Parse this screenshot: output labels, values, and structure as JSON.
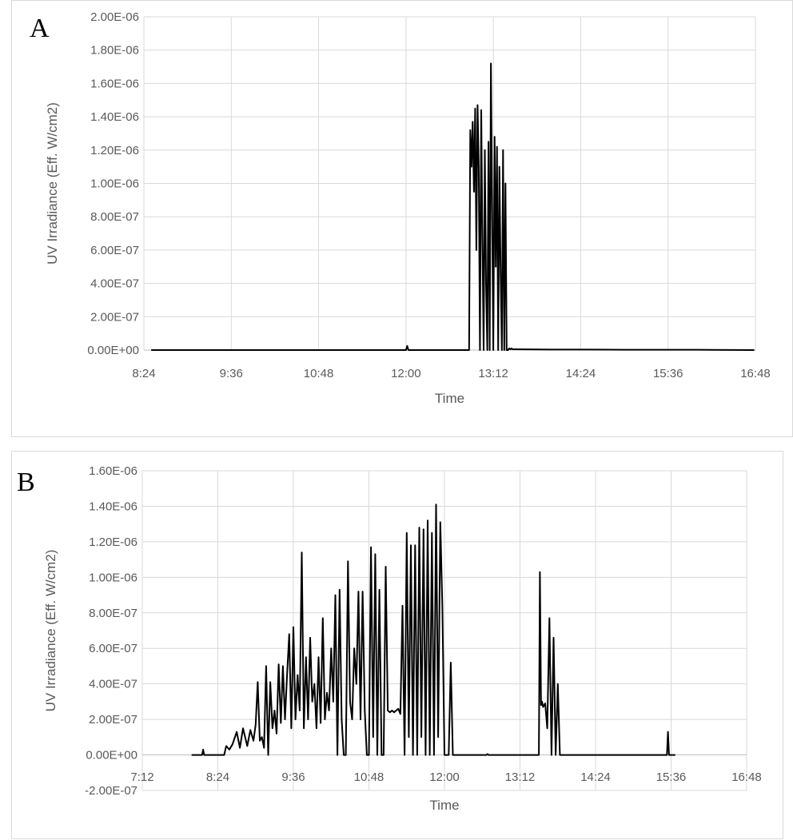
{
  "chart_data": [
    {
      "type": "line",
      "panel_label": "A",
      "xlabel": "Time",
      "ylabel": "UV Irradiance (Eff. W/cm2)",
      "x_unit": "time of day (hh:mm)",
      "xlim": [
        "8:24",
        "16:48"
      ],
      "ylim": [
        0,
        2e-06
      ],
      "x_tick_labels": [
        "8:24",
        "9:36",
        "10:48",
        "12:00",
        "13:12",
        "14:24",
        "15:36",
        "16:48"
      ],
      "y_tick_labels": [
        "0.00E+00",
        "2.00E-07",
        "4.00E-07",
        "6.00E-07",
        "8.00E-07",
        "1.00E-06",
        "1.20E-06",
        "1.40E-06",
        "1.60E-06",
        "1.80E-06",
        "2.00E-06"
      ],
      "grid": true,
      "legend": "none",
      "series": [
        {
          "color": "#000000",
          "x": [
            "8:30",
            "10:40",
            "11:30",
            "12:00",
            "12:01",
            "12:02",
            "12:30",
            "12:52",
            "12:53",
            "12:54",
            "12:55",
            "12:56",
            "12:57",
            "12:58",
            "12:59",
            "13:00",
            "13:01",
            "13:02",
            "13:03",
            "13:04",
            "13:05",
            "13:06",
            "13:07",
            "13:08",
            "13:09",
            "13:10",
            "13:11",
            "13:12",
            "13:13",
            "13:14",
            "13:15",
            "13:16",
            "13:17",
            "13:18",
            "13:19",
            "13:20",
            "13:21",
            "13:22",
            "13:23",
            "13:24",
            "13:25",
            "13:26",
            "13:27",
            "13:28",
            "13:30",
            "14:00",
            "14:30",
            "15:00",
            "16:00",
            "16:47"
          ],
          "values": [
            0,
            0,
            0,
            0,
            2.5e-08,
            0,
            0,
            0,
            1.32e-06,
            1.1e-06,
            1.37e-06,
            9.5e-07,
            1.45e-06,
            6e-07,
            1.47e-06,
            1.1e-06,
            0,
            1.44e-06,
            6.5e-07,
            0,
            1.2e-06,
            4e-07,
            0,
            1.25e-06,
            0,
            1.72e-06,
            8.5e-07,
            0,
            1.28e-06,
            5e-07,
            1.22e-06,
            0,
            1.1e-06,
            4.5e-07,
            0,
            1.2e-06,
            0,
            1e-06,
            0,
            0,
            1e-08,
            5e-09,
            1e-08,
            5e-09,
            5e-09,
            3e-09,
            3e-09,
            2e-09,
            2e-09,
            0
          ]
        }
      ]
    },
    {
      "type": "line",
      "panel_label": "B",
      "xlabel": "Time",
      "ylabel": "UV Irradiance (Eff. W/cm2)",
      "x_unit": "time of day (hh:mm)",
      "xlim": [
        "7:12",
        "16:48"
      ],
      "ylim": [
        -2e-07,
        1.6e-06
      ],
      "x_tick_labels": [
        "7:12",
        "8:24",
        "9:36",
        "10:48",
        "12:00",
        "13:12",
        "14:24",
        "15:36",
        "16:48"
      ],
      "y_tick_labels": [
        "-2.00E-07",
        "0.00E+00",
        "2.00E-07",
        "4.00E-07",
        "6.00E-07",
        "8.00E-07",
        "1.00E-06",
        "1.20E-06",
        "1.40E-06",
        "1.60E-06"
      ],
      "grid": true,
      "legend": "none",
      "series": [
        {
          "color": "#000000",
          "x": [
            "7:59",
            "8:09",
            "8:10",
            "8:11",
            "8:30",
            "8:32",
            "8:35",
            "8:38",
            "8:42",
            "8:45",
            "8:48",
            "8:52",
            "8:55",
            "8:58",
            "9:00",
            "9:02",
            "9:04",
            "9:06",
            "9:08",
            "9:10",
            "9:12",
            "9:14",
            "9:16",
            "9:18",
            "9:20",
            "9:22",
            "9:24",
            "9:26",
            "9:28",
            "9:30",
            "9:32",
            "9:34",
            "9:36",
            "9:38",
            "9:40",
            "9:42",
            "9:44",
            "9:46",
            "9:48",
            "9:50",
            "9:52",
            "9:54",
            "9:56",
            "9:58",
            "10:00",
            "10:02",
            "10:04",
            "10:06",
            "10:08",
            "10:10",
            "10:12",
            "10:14",
            "10:16",
            "10:18",
            "10:20",
            "10:22",
            "10:24",
            "10:26",
            "10:28",
            "10:30",
            "10:32",
            "10:34",
            "10:36",
            "10:38",
            "10:40",
            "10:42",
            "10:44",
            "10:46",
            "10:48",
            "10:50",
            "10:52",
            "10:54",
            "10:56",
            "10:58",
            "11:00",
            "11:02",
            "11:04",
            "11:06",
            "11:08",
            "11:10",
            "11:12",
            "11:14",
            "11:16",
            "11:18",
            "11:20",
            "11:22",
            "11:24",
            "11:26",
            "11:28",
            "11:30",
            "11:32",
            "11:34",
            "11:36",
            "11:38",
            "11:40",
            "11:42",
            "11:44",
            "11:46",
            "11:48",
            "11:50",
            "11:52",
            "11:54",
            "11:56",
            "11:58",
            "12:00",
            "12:02",
            "12:04",
            "12:06",
            "12:08",
            "12:10",
            "12:12",
            "12:40",
            "12:41",
            "12:42",
            "13:00",
            "13:01",
            "13:02",
            "13:30",
            "13:31",
            "13:32",
            "13:33",
            "13:34",
            "13:36",
            "13:38",
            "13:40",
            "13:42",
            "13:44",
            "13:46",
            "13:48",
            "13:50",
            "14:10",
            "15:00",
            "15:32",
            "15:33",
            "15:34",
            "15:40"
          ],
          "values": [
            0,
            0,
            3e-08,
            0,
            0,
            5e-08,
            3e-08,
            6e-08,
            1.3e-07,
            4e-08,
            1.5e-07,
            5e-08,
            1.4e-07,
            8e-08,
            1.7e-07,
            4.1e-07,
            8e-08,
            1e-07,
            4e-08,
            5e-07,
            0,
            4.1e-07,
            1.5e-07,
            2.5e-07,
            1.2e-07,
            5.1e-07,
            1.8e-07,
            5e-07,
            2e-07,
            4.5e-07,
            6.8e-07,
            1.5e-07,
            7.2e-07,
            2e-07,
            4.5e-07,
            2.5e-07,
            1.14e-06,
            1.5e-07,
            5.5e-07,
            2e-07,
            6.6e-07,
            3e-07,
            4e-07,
            1.5e-07,
            5.5e-07,
            1.8e-07,
            7.7e-07,
            2e-07,
            3.5e-07,
            2.5e-07,
            6e-07,
            3e-07,
            9e-07,
            0,
            9.3e-07,
            2e-07,
            0,
            0,
            1.09e-06,
            3e-07,
            2e-07,
            6e-07,
            4e-07,
            9.2e-07,
            2e-07,
            9.2e-07,
            2.5e-07,
            0,
            0,
            1.17e-06,
            1e-07,
            1.13e-06,
            0,
            9.3e-07,
            0,
            0,
            1.06e-06,
            2.5e-07,
            2.4e-07,
            2.5e-07,
            2.4e-07,
            2.5e-07,
            2.6e-07,
            2.3e-07,
            8.4e-07,
            0,
            1.25e-06,
            1e-07,
            1.18e-06,
            0,
            1.18e-06,
            0,
            1.28e-06,
            1e-07,
            1.27e-06,
            0,
            1.32e-06,
            0,
            1.25e-06,
            0,
            1.41e-06,
            1e-07,
            1.31e-06,
            8.3e-07,
            0,
            0,
            0,
            5.2e-07,
            0,
            0,
            0,
            0,
            5e-09,
            0,
            0,
            0,
            0,
            0,
            1.03e-06,
            2.8e-07,
            3e-07,
            2.7e-07,
            2.9e-07,
            1.5e-07,
            7.7e-07,
            0,
            6.6e-07,
            0,
            4e-07,
            0,
            0,
            0,
            0,
            1.3e-07,
            0,
            0
          ]
        }
      ]
    }
  ]
}
